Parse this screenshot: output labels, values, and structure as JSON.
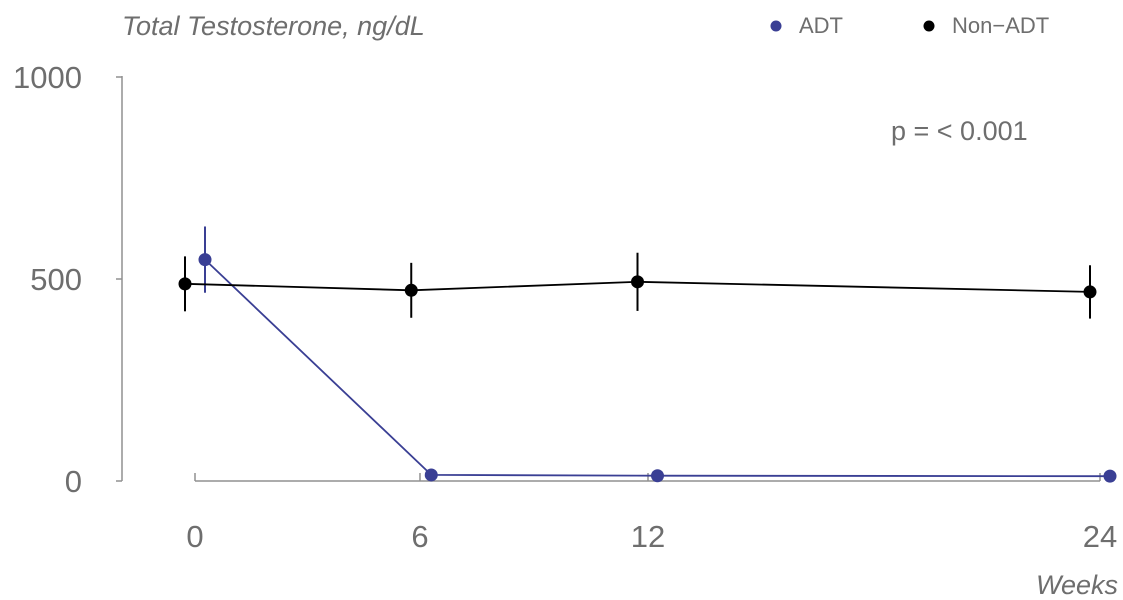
{
  "chart_data": {
    "type": "line",
    "ylabel": "Total Testosterone, ng/dL",
    "xlabel": "Weeks",
    "x_ticks": [
      "0",
      "6",
      "12",
      "24"
    ],
    "y_ticks": [
      "0",
      "500",
      "1000"
    ],
    "xlim": [
      0,
      24
    ],
    "ylim": [
      0,
      1000
    ],
    "grid": false,
    "legend_position": "top-right",
    "annotation": "p = < 0.001",
    "series": [
      {
        "name": "ADT",
        "color": "#3a3f94",
        "points": [
          {
            "x": 0,
            "y": 548,
            "err": 82
          },
          {
            "x": 6,
            "y": 15,
            "err": 0
          },
          {
            "x": 12,
            "y": 13,
            "err": 0
          },
          {
            "x": 24,
            "y": 12,
            "err": 0
          }
        ]
      },
      {
        "name": "Non−ADT",
        "color": "#000000",
        "points": [
          {
            "x": 0,
            "y": 488,
            "err": 68
          },
          {
            "x": 6,
            "y": 472,
            "err": 68
          },
          {
            "x": 12,
            "y": 493,
            "err": 72
          },
          {
            "x": 24,
            "y": 468,
            "err": 66
          }
        ]
      }
    ]
  }
}
